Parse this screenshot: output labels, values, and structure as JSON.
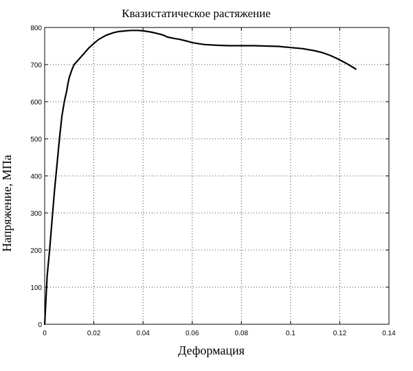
{
  "chart_data": {
    "type": "line",
    "title": "Квазистатическое растяжение",
    "xlabel": "Деформация",
    "ylabel": "Напряжение, МПа",
    "xlim": [
      0,
      0.14
    ],
    "ylim": [
      0,
      800
    ],
    "xticks": [
      0,
      0.02,
      0.04,
      0.06,
      0.08,
      0.1,
      0.12,
      0.14
    ],
    "xtick_labels": [
      "0",
      "0.02",
      "0.04",
      "0.06",
      "0.08",
      "0.1",
      "0.12",
      "0.14"
    ],
    "yticks": [
      0,
      100,
      200,
      300,
      400,
      500,
      600,
      700,
      800
    ],
    "ytick_labels": [
      "0",
      "100",
      "200",
      "300",
      "400",
      "500",
      "600",
      "700",
      "800"
    ],
    "grid": true,
    "series": [
      {
        "color": "#000000",
        "x": [
          0,
          0.001,
          0.002,
          0.003,
          0.004,
          0.005,
          0.006,
          0.007,
          0.008,
          0.009,
          0.0095,
          0.01,
          0.011,
          0.012,
          0.014,
          0.016,
          0.018,
          0.02,
          0.022,
          0.025,
          0.028,
          0.03,
          0.033,
          0.035,
          0.038,
          0.04,
          0.043,
          0.045,
          0.048,
          0.05,
          0.053,
          0.055,
          0.058,
          0.06,
          0.063,
          0.065,
          0.07,
          0.075,
          0.08,
          0.085,
          0.09,
          0.095,
          0.1,
          0.105,
          0.11,
          0.113,
          0.116,
          0.119,
          0.121,
          0.123,
          0.125,
          0.1265
        ],
        "y": [
          0,
          130,
          200,
          280,
          360,
          430,
          500,
          560,
          600,
          630,
          650,
          665,
          685,
          700,
          715,
          730,
          745,
          757,
          768,
          779,
          786,
          789,
          791,
          792,
          792,
          791,
          788,
          785,
          780,
          774,
          770,
          768,
          763,
          759,
          756,
          754,
          752,
          751,
          751,
          751,
          750,
          749,
          746,
          743,
          737,
          732,
          725,
          716,
          709,
          702,
          694,
          688
        ]
      }
    ]
  }
}
